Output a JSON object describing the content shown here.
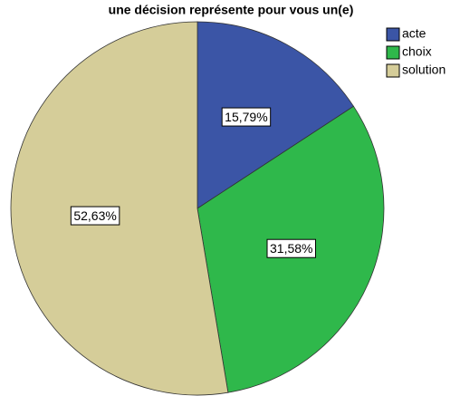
{
  "chart_data": {
    "type": "pie",
    "title": "une décision représente pour vous un(e)",
    "categories": [
      "acte",
      "choix",
      "solution"
    ],
    "values": [
      15.79,
      31.58,
      52.63
    ],
    "value_labels": [
      "15,79%",
      "31,58%",
      "52,63%"
    ],
    "colors": [
      "#3b55a6",
      "#2fb84b",
      "#d5cd99"
    ],
    "legend": "top-right"
  }
}
